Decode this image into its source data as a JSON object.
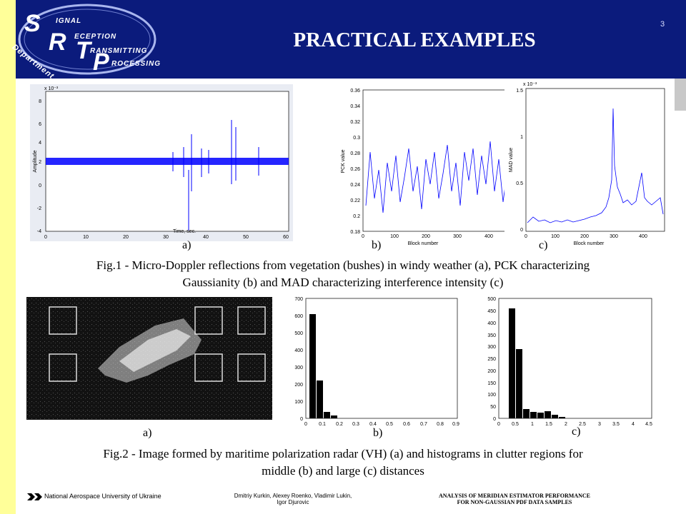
{
  "header": {
    "title": "PRACTICAL EXAMPLES",
    "slide_number": "3",
    "logo": {
      "letters": [
        "S",
        "R",
        "T",
        "P"
      ],
      "words": [
        "IGNAL",
        "ECEPTION",
        "RANSMITTING",
        "ROCESSING"
      ],
      "dept": "Department of"
    }
  },
  "figure1": {
    "panel_a": {
      "label": "a)",
      "xlabel": "Time, sec.",
      "ylabel": "Amplitude",
      "exponent": "x 10⁻³",
      "yticks": [
        "8",
        "6",
        "4",
        "2",
        "0",
        "-2",
        "-4"
      ],
      "xticks": [
        "0",
        "10",
        "20",
        "30",
        "40",
        "50",
        "60"
      ]
    },
    "panel_b": {
      "label": "b)",
      "xlabel": "Block number",
      "ylabel": "PCK value",
      "yticks": [
        "0.36",
        "0.34",
        "0.32",
        "0.3",
        "0.28",
        "0.26",
        "0.24",
        "0.22",
        "0.2",
        "0.18"
      ],
      "xticks": [
        "0",
        "100",
        "200",
        "300",
        "400"
      ]
    },
    "panel_c": {
      "label": "c)",
      "xlabel": "Block number",
      "ylabel": "MAD value",
      "exponent": "x 10⁻³",
      "yticks": [
        "1.5",
        "1",
        "0.5",
        "0"
      ],
      "xticks": [
        "0",
        "100",
        "200",
        "300",
        "400"
      ]
    },
    "caption_line1": "Fig.1 - Micro-Doppler reflections from vegetation (bushes) in windy weather (a), PCK characterizing",
    "caption_line2": "Gaussianity (b) and MAD characterizing interference intensity (c)"
  },
  "figure2": {
    "panel_a": {
      "label": "a)"
    },
    "panel_b": {
      "label": "b)",
      "yticks": [
        "700",
        "600",
        "500",
        "400",
        "300",
        "200",
        "100",
        "0"
      ],
      "xticks": [
        "0",
        "0.1",
        "0.2",
        "0.3",
        "0.4",
        "0.5",
        "0.6",
        "0.7",
        "0.8",
        "0.9"
      ]
    },
    "panel_c": {
      "label": "c)",
      "yticks": [
        "500",
        "450",
        "400",
        "350",
        "300",
        "250",
        "200",
        "150",
        "100",
        "50",
        "0"
      ],
      "xticks": [
        "0",
        "0.5",
        "1",
        "1.5",
        "2",
        "2.5",
        "3",
        "3.5",
        "4",
        "4.5"
      ]
    },
    "caption_line1": "Fig.2 - Image formed by maritime polarization radar (VH) (a) and histograms in clutter regions for",
    "caption_line2": "middle (b) and large (c) distances"
  },
  "footer": {
    "university": "National Aerospace University of Ukraine",
    "authors_line1": "Dmitriy Kurkin, Alexey Roenko, Vladimir Lukin,",
    "authors_line2": "Igor Djurovic",
    "topic_line1": "ANALYSIS OF MERIDIAN ESTIMATOR PERFORMANCE",
    "topic_line2": "FOR NON-GAUSSIAN PDF DATA SAMPLES"
  },
  "colors": {
    "header": "#0b1b7c",
    "accent": "#ffff99",
    "signal": "#0000ff"
  }
}
